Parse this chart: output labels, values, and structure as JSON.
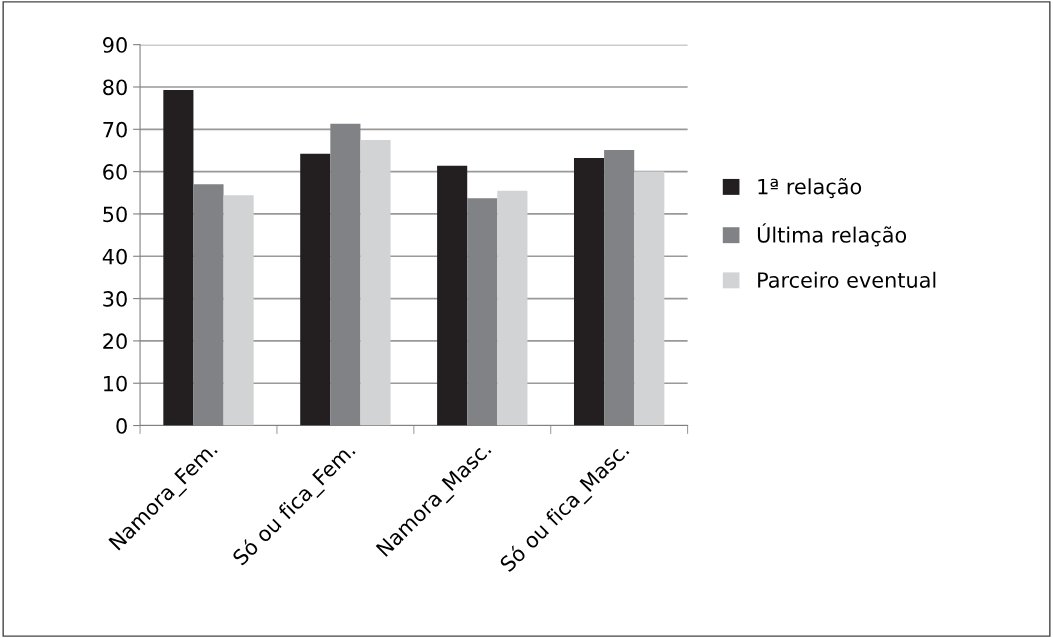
{
  "chart_data": {
    "type": "bar",
    "categories": [
      "Namora_Fem.",
      "Só ou fica_Fem.",
      "Namora_Masc.",
      "Só ou fica_Masc."
    ],
    "series": [
      {
        "name": "1ª relação",
        "color": "#231f20",
        "values": [
          79.3,
          64.2,
          61.4,
          63.2
        ]
      },
      {
        "name": "Última relação",
        "color": "#808285",
        "values": [
          57.0,
          71.3,
          53.7,
          65.1
        ]
      },
      {
        "name": "Parceiro eventual",
        "color": "#d1d3d4",
        "values": [
          54.4,
          67.5,
          55.5,
          60.0
        ]
      }
    ],
    "ylim": [
      0,
      90
    ],
    "yticks": [
      0,
      10,
      20,
      30,
      40,
      50,
      60,
      70,
      80,
      90
    ],
    "grid": "y",
    "legend": "right"
  }
}
